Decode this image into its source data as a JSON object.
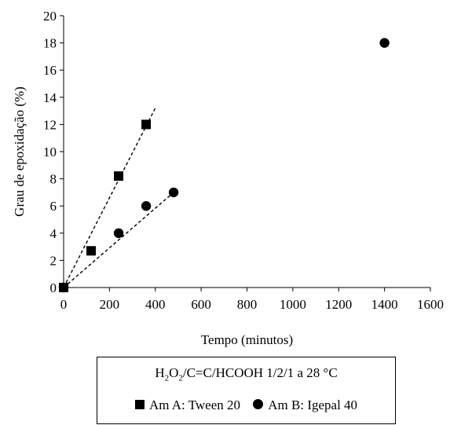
{
  "chart_data": {
    "type": "scatter",
    "title": "",
    "xlabel": "Tempo (minutos)",
    "ylabel": "Grau de epoxidação (%)",
    "xlim": [
      0,
      1600
    ],
    "ylim": [
      0,
      20
    ],
    "xticks": [
      0,
      200,
      400,
      600,
      800,
      1000,
      1200,
      1400,
      1600
    ],
    "yticks": [
      0,
      2,
      4,
      6,
      8,
      10,
      12,
      14,
      16,
      18,
      20
    ],
    "grid": false,
    "legend_position": "bottom",
    "legend_title": {
      "pre": "H",
      "sub1": "2",
      "mid": "O",
      "sub2": "2",
      "post": "/C=C/HCOOH 1/2/1 a 28 °C"
    },
    "series": [
      {
        "name": "Am A: Tween 20",
        "marker": "square",
        "color": "#000000",
        "points": [
          [
            0,
            0
          ],
          [
            120,
            2.7
          ],
          [
            240,
            8.2
          ],
          [
            360,
            12.0
          ]
        ],
        "trendline": [
          [
            0,
            0
          ],
          [
            400,
            13.2
          ]
        ]
      },
      {
        "name": "Am B: Igepal 40",
        "marker": "circle",
        "color": "#000000",
        "points": [
          [
            0,
            0
          ],
          [
            240,
            4.0
          ],
          [
            360,
            6.0
          ],
          [
            480,
            7.0
          ],
          [
            1400,
            18.0
          ]
        ],
        "trendline": [
          [
            0,
            0
          ],
          [
            480,
            7.0
          ]
        ]
      }
    ]
  }
}
